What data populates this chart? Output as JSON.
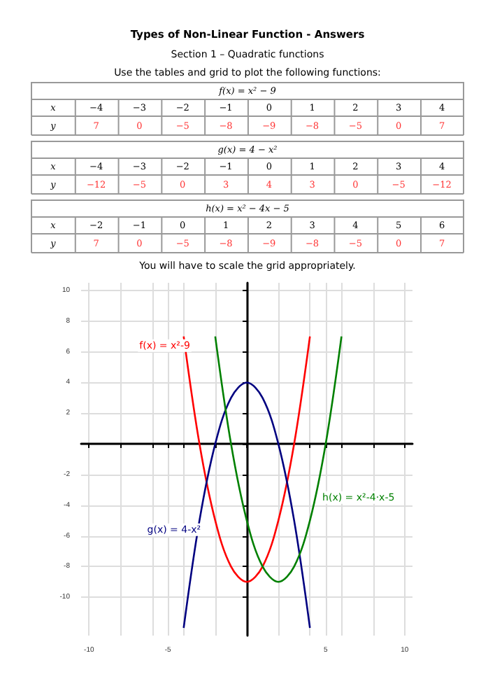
{
  "chart_data": [
    {
      "type": "other",
      "title": "Types of Non-Linear Function - Answers",
      "subtitle": "Section 1 – Quadratic functions",
      "annotations": [
        "Use the tables and grid to plot the following functions:"
      ]
    },
    {
      "type": "heatmap",
      "title": "f(x) = x² − 9",
      "xlabel": "x",
      "categories": [
        "−4",
        "−3",
        "−2",
        "−1",
        "0",
        "1",
        "2",
        "3",
        "4"
      ],
      "y_categories": [
        "y"
      ],
      "cells": [
        [
          7,
          0,
          -5,
          -8,
          -9,
          -8,
          -5,
          0,
          7
        ]
      ],
      "color": "#ff3333",
      "data_labels": true
    },
    {
      "type": "heatmap",
      "title": "g(x) = 4 − x²",
      "xlabel": "x",
      "categories": [
        "−4",
        "−3",
        "−2",
        "−1",
        "0",
        "1",
        "2",
        "3",
        "4"
      ],
      "y_categories": [
        "y"
      ],
      "cells": [
        [
          -12,
          -5,
          0,
          3,
          4,
          3,
          0,
          -5,
          -12
        ]
      ],
      "color": "#ff3333",
      "data_labels": true
    },
    {
      "type": "heatmap",
      "title": "h(x) = x² − 4x − 5",
      "xlabel": "x",
      "categories": [
        "−2",
        "−1",
        "0",
        "1",
        "2",
        "3",
        "4",
        "5",
        "6"
      ],
      "y_categories": [
        "y"
      ],
      "cells": [
        [
          7,
          0,
          -5,
          -8,
          -9,
          -8,
          -5,
          0,
          7
        ]
      ],
      "color": "#ff3333",
      "data_labels": true
    },
    {
      "type": "line",
      "annotations": [
        "You will have to scale the grid appropriately."
      ],
      "series": [
        {
          "name": "f(x) = x²-9",
          "color": "#ff0000",
          "x": [
            -4,
            -3,
            -2,
            -1,
            0,
            1,
            2,
            3,
            4
          ],
          "values": [
            7,
            0,
            -5,
            -8,
            -9,
            -8,
            -5,
            0,
            7
          ]
        },
        {
          "name": "g(x) = 4-x²",
          "color": "#000080",
          "x": [
            -4,
            -3,
            -2,
            -1,
            0,
            1,
            2,
            3,
            4
          ],
          "values": [
            -12,
            -5,
            0,
            3,
            4,
            3,
            0,
            -5,
            -12
          ]
        },
        {
          "name": "h(x) = x²-4·x-5",
          "color": "#008000",
          "x": [
            -2,
            -1,
            0,
            1,
            2,
            3,
            4,
            5,
            6
          ],
          "values": [
            7,
            0,
            -5,
            -8,
            -9,
            -8,
            -5,
            0,
            7
          ]
        }
      ],
      "marker": "none",
      "line_style": "solid",
      "grid": true,
      "legend": false,
      "xlim": [
        -10.5,
        10.5
      ],
      "xticks": [
        -10,
        {
          "value": -8,
          "label": null
        },
        {
          "value": -6,
          "label": null
        },
        -5,
        {
          "value": -4,
          "label": null
        },
        {
          "value": -2,
          "label": null
        },
        {
          "value": 0,
          "label": null
        },
        {
          "value": 2,
          "label": null
        },
        {
          "value": 4,
          "label": null
        },
        5,
        {
          "value": 6,
          "label": null
        },
        {
          "value": 8,
          "label": null
        },
        10
      ],
      "ylim": [
        -12.5,
        10.5
      ],
      "yticks": [
        -10,
        -8,
        -6,
        -4,
        -2,
        {
          "value": 0,
          "label": null
        },
        2,
        4,
        6,
        8,
        10
      ]
    }
  ]
}
